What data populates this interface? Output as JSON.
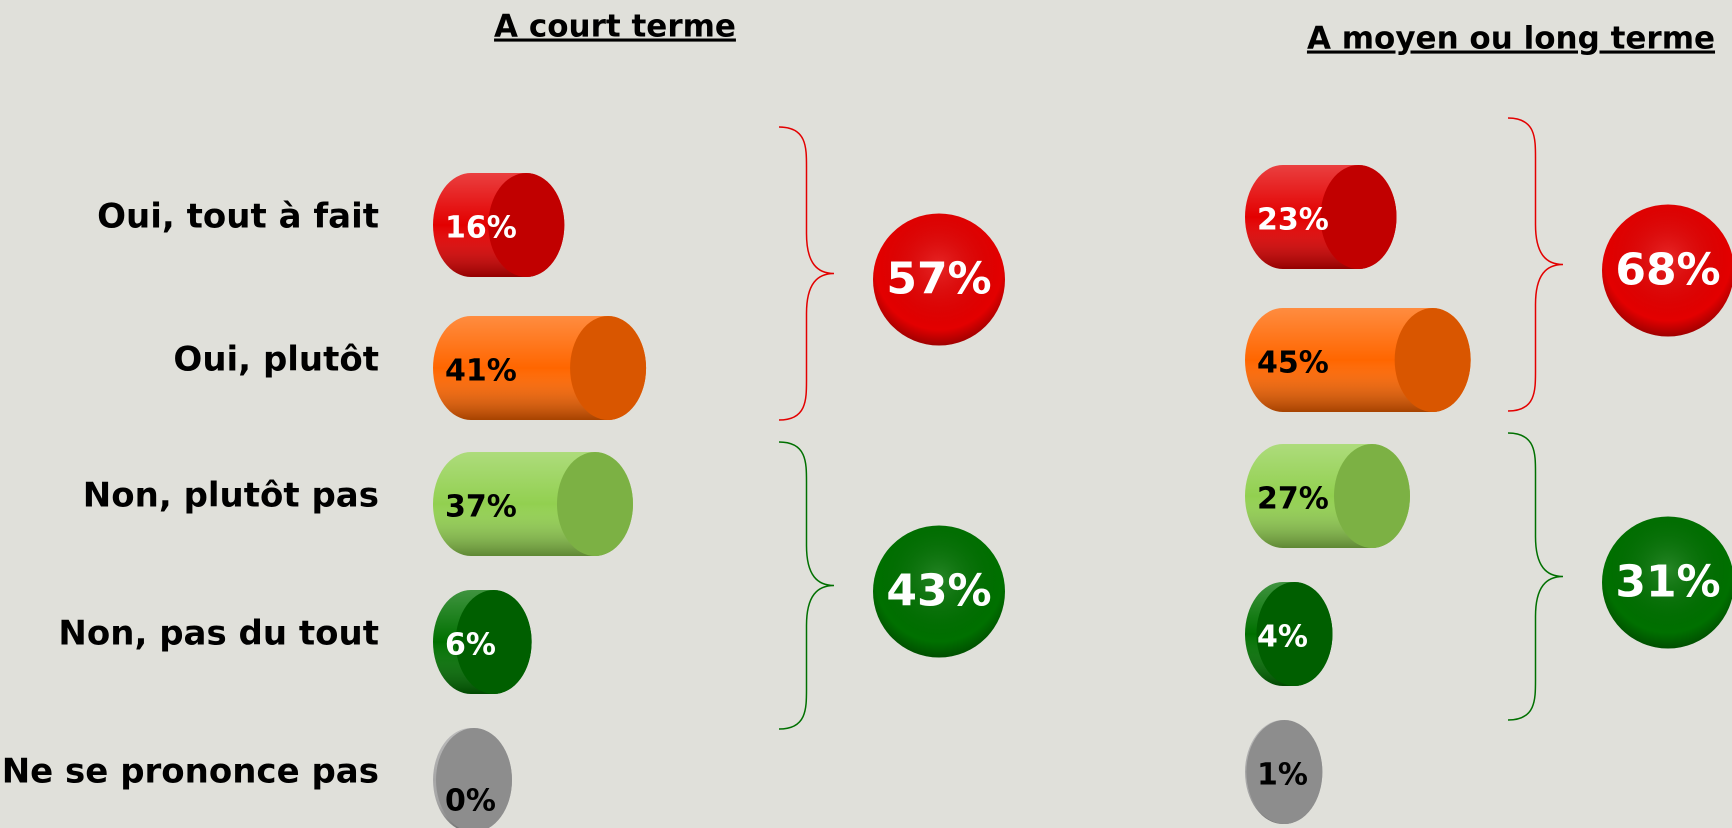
{
  "chart_data": {
    "type": "cylinder-bar",
    "categories": [
      "Oui, tout à fait",
      "Oui, plutôt",
      "Non, plutôt pas",
      "Non, pas du tout",
      "Ne se prononce pas"
    ],
    "colors": [
      "#e30000",
      "#ff6600",
      "#92d050",
      "#007000",
      "#a6a6a6"
    ],
    "label_colors": [
      "#ffffff",
      "#000000",
      "#000000",
      "#ffffff",
      "#000000"
    ],
    "group_colors": [
      "#e30000",
      "#007000"
    ],
    "series": [
      {
        "name": "A court terme",
        "values": [
          16,
          41,
          37,
          6,
          0
        ],
        "value_labels": [
          "16%",
          "41%",
          "37%",
          "6%",
          "0%"
        ],
        "totals": [
          57,
          43
        ],
        "total_labels": [
          "57%",
          "43%"
        ]
      },
      {
        "name": "A moyen ou long terme",
        "values": [
          23,
          45,
          27,
          4,
          1
        ],
        "value_labels": [
          "23%",
          "45%",
          "27%",
          "4%",
          "1%"
        ],
        "totals": [
          68,
          31
        ],
        "total_labels": [
          "68%",
          "31%"
        ]
      }
    ]
  }
}
